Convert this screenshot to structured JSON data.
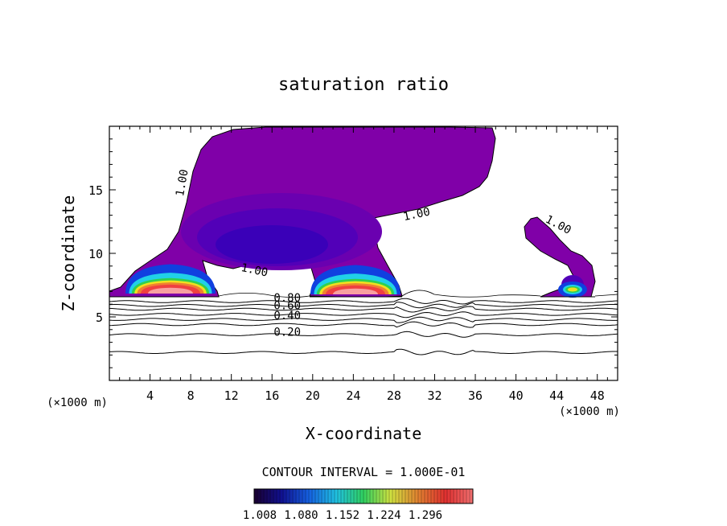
{
  "chart_data": {
    "type": "heatmap",
    "title": "saturation ratio",
    "xlabel": "X-coordinate",
    "ylabel": "Z-coordinate",
    "x_unit_left": "(×1000 m)",
    "x_unit_right": "(×1000 m)",
    "xlim": [
      0,
      50
    ],
    "ylim": [
      0,
      20
    ],
    "x_ticks": [
      4,
      8,
      12,
      16,
      20,
      24,
      28,
      32,
      36,
      40,
      44,
      48
    ],
    "y_ticks": [
      5,
      10,
      15
    ],
    "contour_interval_text": "CONTOUR INTERVAL = 1.000E-01",
    "contour_labels": [
      {
        "text": "1.00",
        "x": 7.5,
        "z": 15.5,
        "angle": -80
      },
      {
        "text": "1.00",
        "x": 30.3,
        "z": 12.8,
        "angle": -12
      },
      {
        "text": "1.00",
        "x": 44.0,
        "z": 12.0,
        "angle": 28
      },
      {
        "text": "1.00",
        "x": 14.2,
        "z": 8.4,
        "angle": 12
      },
      {
        "text": "0.80",
        "x": 17.5,
        "z": 6.2,
        "angle": 0
      },
      {
        "text": "0.60",
        "x": 17.5,
        "z": 5.6,
        "angle": 0
      },
      {
        "text": "0.40",
        "x": 17.5,
        "z": 4.8,
        "angle": 0
      },
      {
        "text": "0.20",
        "x": 17.5,
        "z": 3.5,
        "angle": 0
      }
    ],
    "colorbar_labels": [
      "1.008",
      "1.080",
      "1.152",
      "1.224",
      "1.296"
    ],
    "colorbar_colors": [
      "#1a0030",
      "#101090",
      "#1560e0",
      "#20c0e0",
      "#30d060",
      "#d0e040",
      "#e08030",
      "#e03030",
      "#f07070"
    ],
    "fill_colors": {
      "base": "#8000a8",
      "level2": "#6a00b0",
      "level3": "#5200b8",
      "level4": "#3a00b8",
      "blue": "#1040e0",
      "cyan": "#20d0e8",
      "green": "#30d050",
      "yellow": "#f0e020",
      "orange": "#f08030",
      "red": "#f04040",
      "pink": "#f8a0a0"
    }
  }
}
